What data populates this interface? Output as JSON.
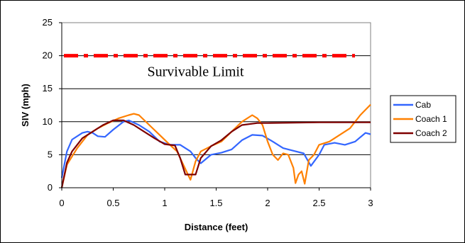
{
  "chart_data": {
    "type": "line",
    "title": "",
    "xlabel": "Distance (feet)",
    "ylabel": "SIV (mph)",
    "xlim": [
      0,
      3
    ],
    "ylim": [
      0,
      25
    ],
    "xticks": [
      "0",
      "0.5",
      "1",
      "1.5",
      "2",
      "2.5",
      "3"
    ],
    "yticks": [
      "0",
      "5",
      "10",
      "15",
      "20",
      "25"
    ],
    "grid": "horizontal",
    "legend_position": "right",
    "limit_line": {
      "value": 20,
      "label": "Survivable Limit",
      "color": "#ff0000"
    },
    "series": [
      {
        "name": "Cab",
        "color": "#3366ff",
        "points": [
          [
            0,
            1.5
          ],
          [
            0.05,
            5.5
          ],
          [
            0.1,
            7.3
          ],
          [
            0.2,
            8.3
          ],
          [
            0.25,
            8.5
          ],
          [
            0.3,
            8.3
          ],
          [
            0.35,
            7.8
          ],
          [
            0.42,
            7.7
          ],
          [
            0.5,
            8.8
          ],
          [
            0.6,
            10
          ],
          [
            0.65,
            10.2
          ],
          [
            0.75,
            9.5
          ],
          [
            0.85,
            8.5
          ],
          [
            0.95,
            7
          ],
          [
            1.05,
            6.5
          ],
          [
            1.15,
            6.5
          ],
          [
            1.25,
            5.5
          ],
          [
            1.3,
            4.5
          ],
          [
            1.35,
            3.7
          ],
          [
            1.45,
            5
          ],
          [
            1.55,
            5.3
          ],
          [
            1.65,
            5.8
          ],
          [
            1.75,
            7.2
          ],
          [
            1.85,
            8
          ],
          [
            1.95,
            7.9
          ],
          [
            2.05,
            7
          ],
          [
            2.15,
            6
          ],
          [
            2.25,
            5.6
          ],
          [
            2.35,
            5.2
          ],
          [
            2.42,
            3.3
          ],
          [
            2.5,
            5
          ],
          [
            2.55,
            6.5
          ],
          [
            2.65,
            6.8
          ],
          [
            2.75,
            6.5
          ],
          [
            2.85,
            7
          ],
          [
            2.95,
            8.3
          ],
          [
            3.0,
            8.1
          ]
        ]
      },
      {
        "name": "Coach 1",
        "color": "#ff8000",
        "points": [
          [
            0,
            0
          ],
          [
            0.05,
            3.5
          ],
          [
            0.15,
            6
          ],
          [
            0.25,
            8
          ],
          [
            0.35,
            9
          ],
          [
            0.45,
            9.8
          ],
          [
            0.55,
            10.5
          ],
          [
            0.65,
            11
          ],
          [
            0.7,
            11.2
          ],
          [
            0.75,
            11
          ],
          [
            0.85,
            9.5
          ],
          [
            0.95,
            8
          ],
          [
            1.05,
            6.5
          ],
          [
            1.12,
            5.5
          ],
          [
            1.18,
            3.5
          ],
          [
            1.25,
            1.2
          ],
          [
            1.3,
            4
          ],
          [
            1.35,
            5.5
          ],
          [
            1.45,
            6.3
          ],
          [
            1.55,
            7
          ],
          [
            1.65,
            8.5
          ],
          [
            1.75,
            10
          ],
          [
            1.85,
            11
          ],
          [
            1.9,
            10.5
          ],
          [
            1.95,
            9.5
          ],
          [
            2.0,
            7
          ],
          [
            2.05,
            5
          ],
          [
            2.1,
            4.2
          ],
          [
            2.15,
            5.2
          ],
          [
            2.2,
            5
          ],
          [
            2.25,
            3
          ],
          [
            2.27,
            0.7
          ],
          [
            2.3,
            2
          ],
          [
            2.33,
            2.5
          ],
          [
            2.36,
            0.6
          ],
          [
            2.4,
            4.2
          ],
          [
            2.45,
            5
          ],
          [
            2.5,
            6.5
          ],
          [
            2.6,
            7
          ],
          [
            2.7,
            8
          ],
          [
            2.8,
            9
          ],
          [
            2.9,
            11
          ],
          [
            3.0,
            12.6
          ]
        ]
      },
      {
        "name": "Coach 2",
        "color": "#7f0000",
        "points": [
          [
            0,
            0
          ],
          [
            0.05,
            3.8
          ],
          [
            0.1,
            5.5
          ],
          [
            0.2,
            7.5
          ],
          [
            0.3,
            8.5
          ],
          [
            0.4,
            9.5
          ],
          [
            0.5,
            10.2
          ],
          [
            0.6,
            10.2
          ],
          [
            0.7,
            9.5
          ],
          [
            0.8,
            8.5
          ],
          [
            0.9,
            7.5
          ],
          [
            1.0,
            6.6
          ],
          [
            1.1,
            6.4
          ],
          [
            1.15,
            4.5
          ],
          [
            1.2,
            2
          ],
          [
            1.3,
            2
          ],
          [
            1.35,
            4.5
          ],
          [
            1.45,
            6.3
          ],
          [
            1.55,
            7.2
          ],
          [
            1.65,
            8.5
          ],
          [
            1.75,
            9.5
          ],
          [
            1.9,
            9.8
          ],
          [
            2.0,
            9.8
          ],
          [
            2.5,
            9.9
          ],
          [
            3.0,
            9.9
          ]
        ]
      }
    ]
  }
}
